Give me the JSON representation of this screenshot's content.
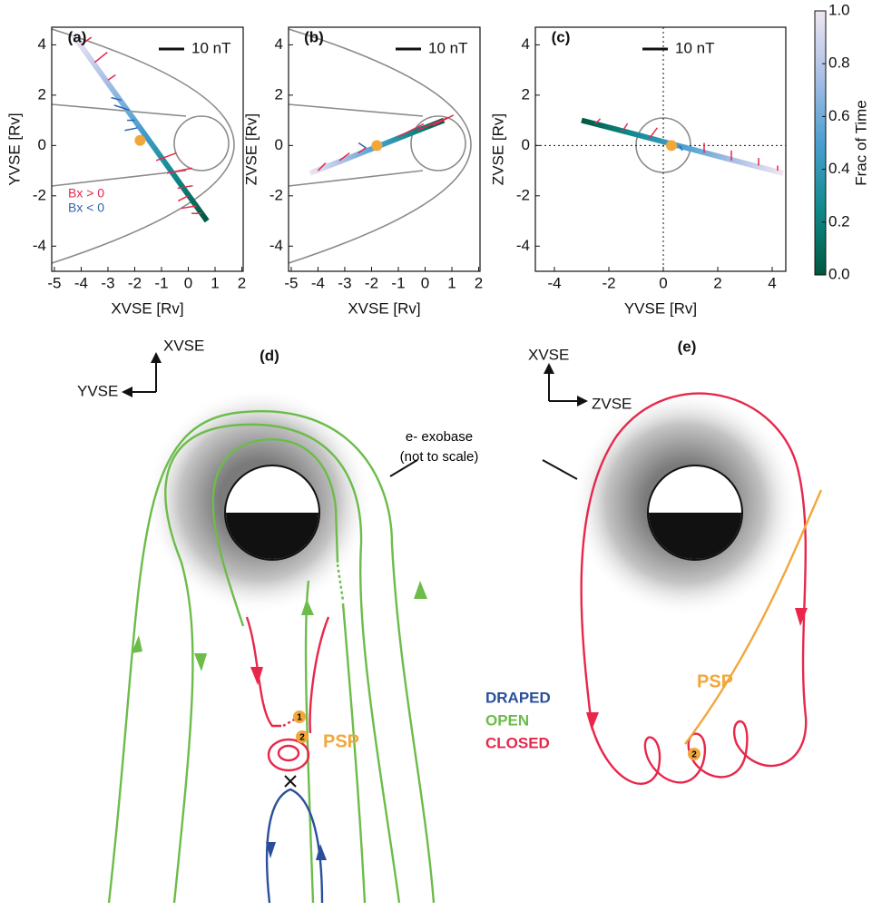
{
  "chart_data": [
    {
      "type": "quiver",
      "label": "(a)",
      "xlabel": "XVSE [Rv]",
      "ylabel": "YVSE [Rv]",
      "xlim": [
        -5.1,
        2.05
      ],
      "ylim": [
        -5,
        4.7
      ],
      "xticks": [
        -5,
        -4,
        -3,
        -2,
        -1,
        0,
        1,
        2
      ],
      "yticks": [
        -4,
        -2,
        0,
        2,
        4
      ],
      "scale_bar": {
        "value": 10,
        "label": "10 nT"
      },
      "legend": "lower left",
      "trajectory": {
        "x": [
          0.7,
          -0.55,
          -1.8,
          -3.05,
          -4.3
        ],
        "y": [
          -3.0,
          -1.15,
          0.7,
          2.55,
          4.4
        ],
        "t": [
          0,
          0.25,
          0.5,
          0.75,
          1
        ]
      },
      "marker": {
        "x": -1.8,
        "y": 0.2,
        "color": "#f2a73b"
      },
      "series": [
        {
          "name": "Bx > 0",
          "color": "#e8274b",
          "x": [
            -4.0,
            -3.5,
            -3.0,
            -1.2,
            -0.8,
            -0.4,
            0.0,
            0.3,
            0.5
          ],
          "y": [
            4.0,
            3.3,
            2.6,
            -0.6,
            -1.1,
            -1.7,
            -2.0,
            -2.4,
            -2.7
          ],
          "u": [
            4,
            5,
            3,
            8,
            10,
            6,
            -4,
            -6,
            -4
          ],
          "v": [
            3,
            4,
            2,
            3,
            2,
            1,
            -2,
            -1,
            0
          ]
        },
        {
          "name": "Bx < 0",
          "color": "#2f63b0",
          "x": [
            -2.5,
            -2.2,
            -2.0,
            -1.9
          ],
          "y": [
            1.8,
            1.4,
            1.0,
            0.7
          ],
          "u": [
            -4,
            -6,
            -3,
            -5
          ],
          "v": [
            1,
            2,
            0,
            -1
          ]
        }
      ]
    },
    {
      "type": "quiver",
      "label": "(b)",
      "xlabel": "XVSE [Rv]",
      "ylabel": "ZVSE [Rv]",
      "xlim": [
        -5.1,
        2.05
      ],
      "ylim": [
        -5,
        4.7
      ],
      "xticks": [
        -5,
        -4,
        -3,
        -2,
        -1,
        0,
        1,
        2
      ],
      "yticks": [
        -4,
        -2,
        0,
        2,
        4
      ],
      "scale_bar": {
        "value": 10,
        "label": "10 nT"
      },
      "trajectory": {
        "x": [
          0.7,
          -0.55,
          -1.8,
          -3.05,
          -4.3
        ],
        "y": [
          1.0,
          0.48,
          -0.05,
          -0.58,
          -1.1
        ],
        "t": [
          0,
          0.25,
          0.5,
          0.75,
          1
        ]
      },
      "marker": {
        "x": -1.8,
        "y": 0.0,
        "color": "#f2a73b"
      },
      "series": [
        {
          "color": "#e8274b",
          "x": [
            -4.0,
            -3.2,
            -2.5,
            -1.0,
            -0.3,
            0.3
          ],
          "y": [
            -1.0,
            -0.6,
            -0.3,
            0.35,
            0.6,
            0.8
          ],
          "u": [
            3,
            4,
            3,
            10,
            12,
            8
          ],
          "v": [
            3,
            3,
            2,
            5,
            5,
            4
          ]
        },
        {
          "color": "#2f63b0",
          "x": [
            -2.2
          ],
          "y": [
            -0.1
          ],
          "u": [
            -3
          ],
          "v": [
            2
          ]
        }
      ]
    },
    {
      "type": "quiver",
      "label": "(c)",
      "xlabel": "YVSE [Rv]",
      "ylabel": "ZVSE [Rv]",
      "xlim": [
        -4.7,
        4.5
      ],
      "ylim": [
        -5,
        4.7
      ],
      "xticks": [
        -4,
        -2,
        0,
        2,
        4
      ],
      "yticks": [
        -4,
        -2,
        0,
        2,
        4
      ],
      "scale_bar": {
        "value": 10,
        "label": "10 nT"
      },
      "zero_lines": true,
      "trajectory": {
        "x": [
          -3.0,
          -1.15,
          0.7,
          2.55,
          4.4
        ],
        "y": [
          1.0,
          0.48,
          -0.05,
          -0.58,
          -1.1
        ],
        "t": [
          0,
          0.25,
          0.5,
          0.75,
          1
        ]
      },
      "marker": {
        "x": 0.3,
        "y": 0.0,
        "color": "#f2a73b"
      },
      "series": [
        {
          "color": "#e8274b",
          "x": [
            -2.5,
            -1.5,
            -0.5,
            1.5,
            2.5,
            3.5,
            4.2
          ],
          "y": [
            0.86,
            0.57,
            0.3,
            -0.3,
            -0.6,
            -0.8,
            -1.0
          ],
          "u": [
            2,
            2,
            3,
            0,
            0,
            0,
            0
          ],
          "v": [
            2,
            3,
            4,
            4,
            4,
            3,
            2
          ]
        },
        {
          "color": "#2f63b0",
          "x": [
            0.6
          ],
          "y": [
            0.0
          ],
          "u": [
            1
          ],
          "v": [
            -2
          ]
        }
      ]
    },
    {
      "type": "colorbar",
      "label": "Frac of Time",
      "lim": [
        0,
        1
      ],
      "ticks": [
        {
          "value": 0,
          "label": "0.0"
        },
        {
          "value": 0.2,
          "label": "0.2"
        },
        {
          "value": 0.4,
          "label": "0.4"
        },
        {
          "value": 0.6,
          "label": "0.6"
        },
        {
          "value": 0.8,
          "label": "0.8"
        },
        {
          "value": 1,
          "label": "1.0"
        }
      ],
      "colors": [
        "#00573f",
        "#0f8a8c",
        "#4a9fd0",
        "#a8bfe6",
        "#efe6f0"
      ]
    }
  ],
  "diagrams": {
    "d": {
      "label": "(d)",
      "axis_up": "XVSE",
      "axis_side": "YVSE",
      "legend": [
        "DRAPED",
        "OPEN",
        "CLOSED"
      ],
      "spacecraft": "PSP",
      "points": [
        "1",
        "2"
      ]
    },
    "e": {
      "label": "(e)",
      "axis_up": "XVSE",
      "axis_side": "ZVSE",
      "spacecraft": "PSP",
      "points": [
        "2"
      ]
    },
    "exobase": "e- exobase",
    "exobase_note": "(not to scale)"
  }
}
